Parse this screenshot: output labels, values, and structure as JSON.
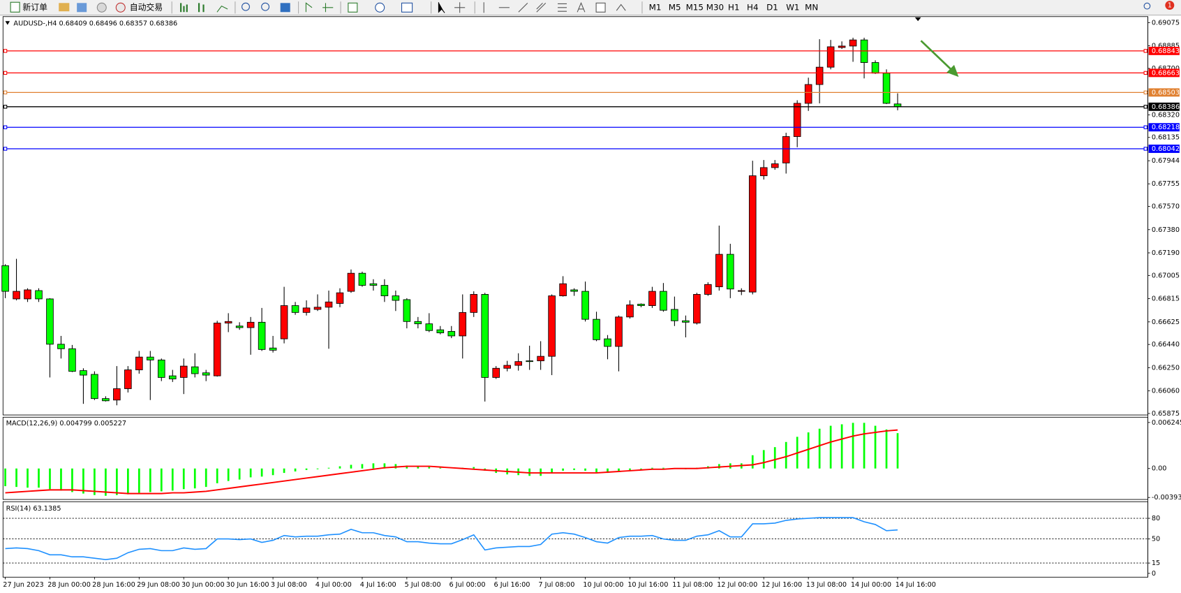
{
  "toolbar": {
    "new_order": "新订单",
    "auto_trading": "自动交易",
    "timeframes": [
      "M1",
      "M5",
      "M15",
      "M30",
      "H1",
      "H4",
      "D1",
      "W1",
      "MN"
    ],
    "notifications": "1"
  },
  "chart_data": [
    {
      "type": "candlestick",
      "title": "AUDUSD-,H4  0.68409 0.68496 0.68357 0.68386",
      "categories": [
        "27 Jun 2023",
        null,
        null,
        null,
        "28 Jun 00:00",
        null,
        null,
        null,
        "28 Jun 16:00",
        null,
        null,
        null,
        "29 Jun 08:00",
        null,
        null,
        null,
        "30 Jun 00:00",
        null,
        null,
        null,
        "30 Jun 16:00",
        null,
        null,
        null,
        "3 Jul 08:00",
        null,
        null,
        null,
        "4 Jul 00:00",
        null,
        null,
        null,
        "4 Jul 16:00",
        null,
        null,
        null,
        "5 Jul 08:00",
        null,
        null,
        null,
        "6 Jul 00:00",
        null,
        null,
        null,
        "6 Jul 16:00",
        null,
        null,
        null,
        "7 Jul 08:00",
        null,
        null,
        null,
        "10 Jul 00:00",
        null,
        null,
        null,
        "10 Jul 16:00",
        null,
        null,
        null,
        "11 Jul 08:00",
        null,
        null,
        null,
        "12 Jul 00:00",
        null,
        null,
        null,
        "12 Jul 16:00",
        null,
        null,
        null,
        "13 Jul 08:00",
        null,
        null,
        null,
        "14 Jul 00:00",
        null,
        null,
        null,
        "14 Jul 16:00"
      ],
      "open": [
        0.67085,
        0.66813,
        0.66813,
        0.66881,
        0.66813,
        0.66442,
        0.66405,
        0.66226,
        0.66195,
        0.65997,
        0.65985,
        0.66078,
        0.66232,
        0.66337,
        0.66313,
        0.66183,
        0.6617,
        0.66257,
        0.66208,
        0.66183,
        0.66615,
        0.66591,
        0.66578,
        0.66622,
        0.66411,
        0.66486,
        0.66758,
        0.66702,
        0.66727,
        0.66745,
        0.66776,
        0.66875,
        0.67023,
        0.66937,
        0.66924,
        0.66838,
        0.66807,
        0.66628,
        0.66609,
        0.6656,
        0.66547,
        0.6651,
        0.66702,
        0.6685,
        0.6617,
        0.66245,
        0.66269,
        0.66306,
        0.66306,
        0.66343,
        0.66838,
        0.66887,
        0.66875,
        0.66646,
        0.66486,
        0.66424,
        0.66665,
        0.6677,
        0.66758,
        0.66875,
        0.66727,
        0.66634,
        0.66615,
        0.6685,
        0.66912,
        0.67178,
        0.66875,
        0.66869,
        0.67821,
        0.67888,
        0.67926,
        0.68142,
        0.68414,
        0.68568,
        0.6871,
        0.68871,
        0.68883,
        0.68933,
        0.68748,
        0.68661,
        0.68409
      ],
      "high": [
        0.67097,
        0.67141,
        0.669,
        0.669,
        0.66819,
        0.6651,
        0.66436,
        0.66245,
        0.6622,
        0.66016,
        0.66263,
        0.66263,
        0.66387,
        0.66387,
        0.66325,
        0.66232,
        0.66325,
        0.66368,
        0.66232,
        0.66634,
        0.66696,
        0.66622,
        0.66665,
        0.66739,
        0.6651,
        0.66912,
        0.66788,
        0.66801,
        0.6685,
        0.66881,
        0.669,
        0.67054,
        0.67036,
        0.66974,
        0.66974,
        0.66881,
        0.66819,
        0.66665,
        0.66696,
        0.66591,
        0.66591,
        0.6685,
        0.66875,
        0.66863,
        0.66263,
        0.66306,
        0.66368,
        0.6643,
        0.66467,
        0.6685,
        0.66999,
        0.669,
        0.66955,
        0.66708,
        0.66517,
        0.66677,
        0.66801,
        0.66776,
        0.66912,
        0.66943,
        0.66832,
        0.66677,
        0.66863,
        0.66949,
        0.67413,
        0.67264,
        0.669,
        0.67944,
        0.6795,
        0.6795,
        0.68173,
        0.68439,
        0.68624,
        0.68939,
        0.68933,
        0.68921,
        0.68951,
        0.68951,
        0.68766,
        0.68692,
        0.68496
      ],
      "low": [
        0.66819,
        0.66801,
        0.66788,
        0.66788,
        0.6617,
        0.66325,
        0.66214,
        0.65954,
        0.65985,
        0.65973,
        0.65942,
        0.66047,
        0.66201,
        0.65985,
        0.6614,
        0.66133,
        0.66034,
        0.6617,
        0.6614,
        0.66177,
        0.66541,
        0.6656,
        0.66356,
        0.66387,
        0.66374,
        0.66449,
        0.66683,
        0.66677,
        0.66714,
        0.66405,
        0.66745,
        0.66863,
        0.66912,
        0.66881,
        0.66788,
        0.66714,
        0.66572,
        0.66572,
        0.66541,
        0.66523,
        0.66492,
        0.66325,
        0.66665,
        0.65973,
        0.66158,
        0.6622,
        0.66226,
        0.66232,
        0.66232,
        0.66189,
        0.66832,
        0.66838,
        0.66628,
        0.66467,
        0.66319,
        0.6622,
        0.66652,
        0.66745,
        0.66739,
        0.66708,
        0.66591,
        0.66498,
        0.66603,
        0.66838,
        0.66881,
        0.66819,
        0.66844,
        0.6685,
        0.6779,
        0.6787,
        0.67839,
        0.68055,
        0.68352,
        0.68414,
        0.68692,
        0.68859,
        0.68754,
        0.68618,
        0.68655,
        0.68408,
        0.68357
      ],
      "close": [
        0.66875,
        0.66875,
        0.66887,
        0.66813,
        0.66442,
        0.66405,
        0.6622,
        0.66189,
        0.65997,
        0.65979,
        0.66078,
        0.66232,
        0.66337,
        0.66313,
        0.6617,
        0.66158,
        0.66263,
        0.66201,
        0.66189,
        0.66615,
        0.66628,
        0.66578,
        0.66622,
        0.66399,
        0.66393,
        0.66758,
        0.66702,
        0.66739,
        0.66745,
        0.66788,
        0.66863,
        0.67023,
        0.66924,
        0.66924,
        0.66838,
        0.66801,
        0.66628,
        0.66609,
        0.66554,
        0.66535,
        0.6651,
        0.66702,
        0.6685,
        0.6617,
        0.66245,
        0.66269,
        0.663,
        0.663,
        0.66343,
        0.66838,
        0.66937,
        0.66875,
        0.66646,
        0.66479,
        0.66424,
        0.66665,
        0.66764,
        0.66758,
        0.66875,
        0.6672,
        0.66634,
        0.66622,
        0.6685,
        0.66931,
        0.67178,
        0.66894,
        0.66881,
        0.67821,
        0.67888,
        0.67919,
        0.68142,
        0.68414,
        0.68568,
        0.6871,
        0.68877,
        0.68883,
        0.68933,
        0.68748,
        0.68661,
        0.68414,
        0.68386
      ],
      "up_color": "#ff0000",
      "down_color": "#00ff00",
      "ylim": [
        0.65863,
        0.69124
      ],
      "yticks": [
        0.69075,
        0.68885,
        {
          "value": 0.687,
          "label": "0.68700"
        },
        {
          "value": 0.6832,
          "label": "0.68320"
        },
        0.68135,
        0.67944,
        0.67755,
        {
          "value": 0.6757,
          "label": "0.67570"
        },
        {
          "value": 0.6738,
          "label": "0.67380"
        },
        {
          "value": 0.6719,
          "label": "0.67190"
        },
        0.67005,
        0.66815,
        0.66625,
        {
          "value": 0.6644,
          "label": "0.66440"
        },
        {
          "value": 0.6625,
          "label": "0.66250"
        },
        {
          "value": 0.6606,
          "label": "0.66060"
        },
        0.65875
      ],
      "levels": [
        {
          "value": 0.68843,
          "color": "#ff0000"
        },
        {
          "value": 0.68663,
          "color": "#ff0000"
        },
        {
          "value": 0.68503,
          "color": "#e08030"
        },
        {
          "value": 0.68386,
          "color": "#000000"
        },
        {
          "value": 0.68218,
          "color": "#0000ff"
        },
        {
          "value": 0.68042,
          "color": "#0000ff"
        }
      ]
    },
    {
      "type": "macd",
      "title": "MACD(12,26,9) 0.004799 0.005227",
      "histogram": {
        "color": "#00ff00",
        "values": [
          -0.0024,
          -0.0025,
          -0.0026,
          -0.0026,
          -0.0028,
          -0.003,
          -0.0032,
          -0.0034,
          -0.0036,
          -0.0037,
          -0.0036,
          -0.0035,
          -0.0033,
          -0.0032,
          -0.0031,
          -0.003,
          -0.0028,
          -0.0027,
          -0.0025,
          -0.002,
          -0.0017,
          -0.0015,
          -0.0012,
          -0.0011,
          -0.0009,
          -0.0006,
          -0.0004,
          -0.0002,
          -0.0001,
          0.0001,
          0.0003,
          0.0005,
          0.0006,
          0.0007,
          0.0007,
          0.0006,
          0.0004,
          0.0003,
          0.0002,
          0.0001,
          0,
          0.0001,
          0.0002,
          -0.0003,
          -0.0006,
          -0.0008,
          -0.0009,
          -0.001,
          -0.001,
          -0.0006,
          -0.0003,
          -0.0002,
          -0.0003,
          -0.0005,
          -0.0006,
          -0.0004,
          -0.0002,
          -0.0001,
          0.0001,
          0.0001,
          0,
          -0.0001,
          0.0001,
          0.0003,
          0.0006,
          0.0007,
          0.0007,
          0.0018,
          0.0025,
          0.0029,
          0.0036,
          0.0043,
          0.0049,
          0.0054,
          0.0058,
          0.006,
          0.0062,
          0.0062,
          0.0058,
          0.0053,
          0.004799
        ]
      },
      "signal": {
        "color": "#ff0000",
        "values": [
          -0.0033,
          -0.0032,
          -0.0031,
          -0.003,
          -0.0029,
          -0.0029,
          -0.0029,
          -0.003,
          -0.0031,
          -0.0032,
          -0.0033,
          -0.0034,
          -0.0034,
          -0.0034,
          -0.0034,
          -0.0033,
          -0.0033,
          -0.0032,
          -0.0031,
          -0.0029,
          -0.0027,
          -0.0025,
          -0.0023,
          -0.0021,
          -0.0019,
          -0.0017,
          -0.0015,
          -0.0013,
          -0.0011,
          -0.0009,
          -0.0007,
          -0.0005,
          -0.0003,
          -0.0001,
          0.0001,
          0.0002,
          0.0003,
          0.0003,
          0.0003,
          0.0002,
          0.0001,
          0,
          -0.0001,
          -0.0002,
          -0.0003,
          -0.0004,
          -0.0005,
          -0.0006,
          -0.0006,
          -0.0006,
          -0.0006,
          -0.0006,
          -0.0006,
          -0.0006,
          -0.0005,
          -0.0004,
          -0.0003,
          -0.0002,
          -0.0001,
          -0.0001,
          0,
          0,
          0,
          0.0001,
          0.0002,
          0.0003,
          0.0004,
          0.0005,
          0.0008,
          0.0012,
          0.0016,
          0.0021,
          0.0026,
          0.0031,
          0.0036,
          0.004,
          0.0044,
          0.0047,
          0.0049,
          0.0051,
          0.005227
        ]
      },
      "ylim": [
        -0.0042,
        0.00696
      ],
      "yticks": [
        0.006245,
        {
          "value": 0,
          "label": "0.00"
        },
        -0.003932
      ]
    },
    {
      "type": "line",
      "title": "RSI(14) 63.1385",
      "color": "#1e90ff",
      "values": [
        36,
        37,
        36,
        33,
        27,
        27,
        24,
        24,
        22,
        20,
        22,
        30,
        35,
        36,
        33,
        33,
        37,
        35,
        36,
        50,
        50,
        49,
        50,
        45,
        48,
        55,
        53,
        54,
        54,
        56,
        57,
        64,
        59,
        59,
        55,
        53,
        46,
        46,
        44,
        43,
        43,
        49,
        56,
        34,
        37,
        38,
        39,
        39,
        42,
        57,
        59,
        57,
        52,
        46,
        44,
        52,
        54,
        54,
        55,
        50,
        48,
        48,
        54,
        56,
        62,
        53,
        53,
        72,
        72,
        73,
        77,
        79,
        80,
        81,
        81,
        81,
        81,
        75,
        71,
        62,
        63.1385
      ],
      "ylim": [
        -5.5,
        104.1
      ],
      "yticks": [
        80,
        50,
        15,
        0
      ],
      "levels": [
        80,
        50,
        15
      ]
    }
  ]
}
